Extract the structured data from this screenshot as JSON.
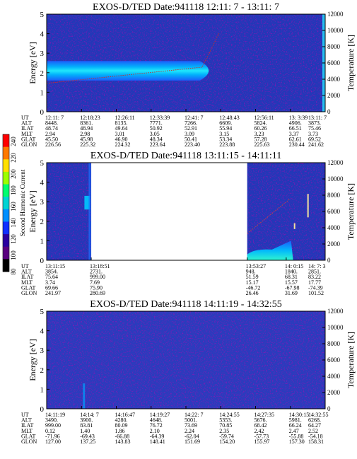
{
  "colorbar": {
    "label": "Second Harmonic Current",
    "ticks": [
      "240",
      "220",
      "200",
      "180",
      "160",
      "140",
      "120",
      "100",
      "80"
    ],
    "colors": [
      "#ff0000",
      "#ff7a00",
      "#ffe000",
      "#9cff00",
      "#00ff70",
      "#00d4d4",
      "#0090ff",
      "#1030ff",
      "#2a00a0",
      "#5a0080",
      "#000000"
    ]
  },
  "chart_data": [
    {
      "type": "heatmap",
      "title": "EXOS-D/TED   Date:941118  12:11: 7 - 13:11: 7",
      "ylabel": "Energy [eV]",
      "y2label": "Temperature [K]",
      "ylim": [
        0,
        5
      ],
      "y2lim": [
        0,
        12000
      ],
      "yticks": [
        "0",
        "1",
        "2",
        "3",
        "4",
        "5"
      ],
      "y2ticks": [
        "0",
        "2000",
        "4000",
        "6000",
        "8000",
        "10000",
        "12000"
      ],
      "data_segments": [
        [
          0.0,
          1.0
        ]
      ],
      "background_color": "#2238b8",
      "band": {
        "center": 2.1,
        "width_min": 0.4,
        "width_max": 1.0,
        "x_end": 0.55
      },
      "orbit": {
        "row_labels": [
          "UT",
          "ALT",
          "ILAT",
          "MLT",
          "GLAT",
          "GLON"
        ],
        "columns": [
          [
            "12:11: 7",
            "8448.",
            "48.74",
            "2.94",
            "45.50",
            "226.56"
          ],
          [
            "12:18:23",
            "8361.",
            "48.94",
            "2.98",
            "45.98",
            "225.32"
          ],
          [
            "12:26:11",
            "8135.",
            "49.64",
            "3.01",
            "46.90",
            "224.32"
          ],
          [
            "12:33:39",
            "7771.",
            "50.92",
            "3.05",
            "48.34",
            "223.64"
          ],
          [
            "12:41: 7",
            "7266.",
            "52.91",
            "3.09",
            "50.41",
            "223.40"
          ],
          [
            "12:48:43",
            "6609.",
            "55.94",
            "3.15",
            "53.34",
            "223.88"
          ],
          [
            "12:56:11",
            "5824.",
            "60.26",
            "3.23",
            "57.28",
            "225.63"
          ],
          [
            "13: 3:39",
            "4906.",
            "66.51",
            "3.37",
            "62.61",
            "230.44"
          ],
          [
            "13:11: 7",
            "3873.",
            "75.46",
            "3.73",
            "69.52",
            "241.62"
          ]
        ]
      }
    },
    {
      "type": "heatmap",
      "title": "EXOS-D/TED   Date:941118  13:11:15 - 14:11:11",
      "ylabel": "Energy [eV]",
      "y2label": "Temperature [K]",
      "ylim": [
        0,
        5
      ],
      "y2lim": [
        0,
        12000
      ],
      "yticks": [
        "0",
        "1",
        "2",
        "3",
        "4",
        "5"
      ],
      "y2ticks": [
        "0",
        "2000",
        "4000",
        "6000",
        "8000",
        "10000",
        "12000"
      ],
      "data_segments": [
        [
          0.0,
          0.16
        ],
        [
          0.72,
          1.0
        ]
      ],
      "background_color": "#2238b8",
      "orbit": {
        "row_labels": [
          "UT",
          "ALT",
          "ILAT",
          "MLT",
          "GLAT",
          "GLON"
        ],
        "columns": [
          [
            "13:11:15",
            "3854.",
            "75.64",
            "3.74",
            "69.66",
            "241.97"
          ],
          [
            "13:18:51",
            "2731.",
            "999.00",
            "7.69",
            "75.90",
            "280.69"
          ],
          [
            "13:53:27",
            "948.",
            "51.59",
            "15.17",
            "-46.72",
            "26.46"
          ],
          [
            "14: 0:15",
            "1840.",
            "68.31",
            "15.57",
            "-67.98",
            "31.69"
          ],
          [
            "14: 7: 3",
            "2851.",
            "83.22",
            "17.77",
            "-74.39",
            "101.52"
          ]
        ],
        "positions": [
          0.0,
          0.16,
          0.72,
          0.86,
          1.0
        ]
      }
    },
    {
      "type": "heatmap",
      "title": "EXOS-D/TED   Date:941118  14:11:19 - 14:32:55",
      "ylabel": "Energy [eV]",
      "y2label": "Temperature [K]",
      "ylim": [
        0,
        5
      ],
      "y2lim": [
        0,
        12000
      ],
      "yticks": [
        "0",
        "1",
        "2",
        "3",
        "4",
        "5"
      ],
      "y2ticks": [
        "0",
        "2000",
        "4000",
        "6000",
        "8000",
        "10000",
        "12000"
      ],
      "data_segments": [
        [
          0.0,
          1.0
        ]
      ],
      "background_color": "#2a3cbd",
      "orbit": {
        "row_labels": [
          "UT",
          "ALT",
          "ILAT",
          "MLT",
          "GLAT",
          "GLON"
        ],
        "columns": [
          [
            "14:11:19",
            "3490.",
            "999.00",
            "0.12",
            "-71.96",
            "127.00"
          ],
          [
            "14:14: 7",
            "3900.",
            "83.81",
            "1.40",
            "-69.43",
            "137.25"
          ],
          [
            "14:16:47",
            "4280.",
            "80.09",
            "1.86",
            "-66.88",
            "143.83"
          ],
          [
            "14:19:27",
            "4648.",
            "76.72",
            "2.10",
            "-64.39",
            "148.41"
          ],
          [
            "14:22: 7",
            "5001.",
            "73.69",
            "2.24",
            "-62.04",
            "151.69"
          ],
          [
            "14:24:55",
            "5353.",
            "70.85",
            "2.35",
            "-59.74",
            "154.20"
          ],
          [
            "14:27:35",
            "5676.",
            "68.42",
            "2.42",
            "-57.73",
            "155.97"
          ],
          [
            "14:30:15",
            "5981.",
            "66.24",
            "2.47",
            "-55.88",
            "157.30"
          ],
          [
            "14:32:55",
            "6268.",
            "64.27",
            "2.52",
            "-54.18",
            "158.31"
          ]
        ]
      }
    }
  ]
}
